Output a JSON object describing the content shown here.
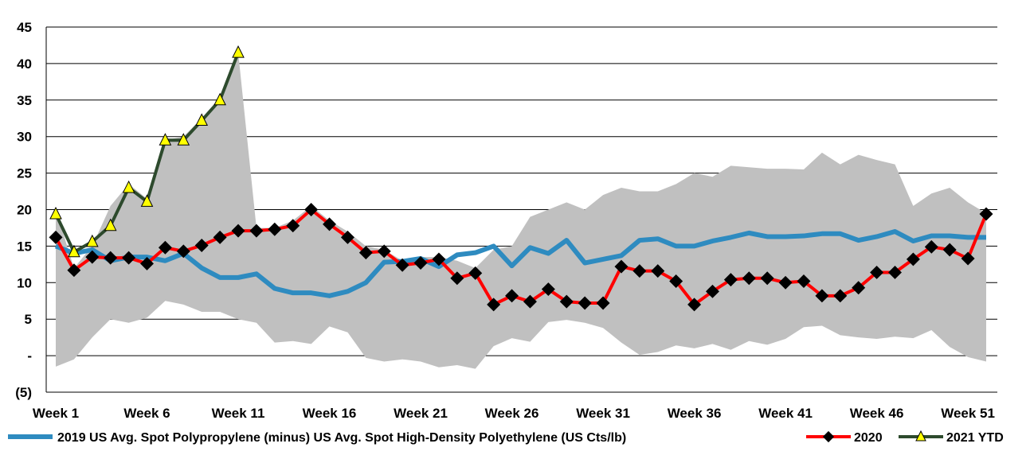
{
  "chart_data": {
    "type": "line",
    "title": "",
    "xlabel": "",
    "ylabel": "",
    "ylim": [
      -5,
      45
    ],
    "y_ticks": [
      -5,
      0,
      5,
      10,
      15,
      20,
      25,
      30,
      35,
      40,
      45
    ],
    "y_tick_labels": [
      "(5)",
      "-",
      "5",
      "10",
      "15",
      "20",
      "25",
      "30",
      "35",
      "40",
      "45"
    ],
    "x_tick_labels": [
      "Week 1",
      "Week 6",
      "Week 11",
      "Week 16",
      "Week 21",
      "Week 26",
      "Week 31",
      "Week 36",
      "Week 41",
      "Week 46",
      "Week 51"
    ],
    "x_tick_weeks": [
      1,
      6,
      11,
      16,
      21,
      26,
      31,
      36,
      41,
      46,
      51
    ],
    "grid": "horizontal",
    "legend_position": "bottom",
    "colors": {
      "band": "#c0c0c0",
      "series_2019": "#2e8bc0",
      "series_2020": "#ff0000",
      "series_2020_marker": "#000000",
      "series_2021": "#2d4a2d",
      "series_2021_marker": "#ffff00"
    },
    "weeks": [
      1,
      2,
      3,
      4,
      5,
      6,
      7,
      8,
      9,
      10,
      11,
      12,
      13,
      14,
      15,
      16,
      17,
      18,
      19,
      20,
      21,
      22,
      23,
      24,
      25,
      26,
      27,
      28,
      29,
      30,
      31,
      32,
      33,
      34,
      35,
      36,
      37,
      38,
      39,
      40,
      41,
      42,
      43,
      44,
      45,
      46,
      47,
      48,
      49,
      50,
      51,
      52
    ],
    "band_high": [
      20.0,
      12.0,
      15.0,
      20.5,
      23.5,
      21.5,
      29.5,
      30.0,
      32.5,
      35.0,
      41.5,
      17.5,
      17.5,
      18.5,
      20.5,
      18.5,
      17.0,
      15.0,
      14.5,
      13.0,
      13.5,
      13.5,
      13.0,
      12.0,
      14.5,
      15.0,
      19.0,
      20.0,
      21.0,
      20.0,
      22.0,
      23.0,
      22.5,
      22.5,
      23.5,
      25.0,
      24.5,
      26.0,
      25.8,
      25.6,
      25.6,
      25.5,
      27.8,
      26.2,
      27.5,
      26.8,
      26.2,
      20.5,
      22.2,
      23.0,
      21.0,
      19.5
    ],
    "band_low": [
      -1.5,
      -0.5,
      2.5,
      5.0,
      4.5,
      5.2,
      7.5,
      7.0,
      6.0,
      6.0,
      5.0,
      4.5,
      1.8,
      2.0,
      1.6,
      4.0,
      3.2,
      -0.3,
      -0.8,
      -0.5,
      -0.8,
      -1.6,
      -1.3,
      -1.8,
      1.3,
      2.4,
      1.9,
      4.6,
      4.9,
      4.5,
      3.8,
      1.8,
      0.1,
      0.5,
      1.4,
      1.0,
      1.6,
      0.8,
      2.0,
      1.5,
      2.3,
      3.9,
      4.1,
      2.8,
      2.5,
      2.3,
      2.6,
      2.4,
      3.5,
      1.2,
      -0.2,
      -0.8
    ],
    "series": [
      {
        "name": "2019 US Avg. Spot Polypropylene (minus) US Avg. Spot High-Density Polyethylene (US Cts/lb)",
        "values": [
          15.0,
          14.0,
          14.5,
          13.0,
          13.5,
          13.5,
          13.0,
          14.0,
          12.0,
          10.7,
          10.7,
          11.2,
          9.2,
          8.6,
          8.6,
          8.2,
          8.8,
          10.0,
          12.8,
          12.9,
          13.3,
          12.2,
          13.8,
          14.1,
          15.0,
          12.3,
          14.8,
          14.0,
          15.8,
          12.7,
          13.2,
          13.7,
          15.8,
          16.0,
          15.0,
          15.0,
          15.7,
          16.2,
          16.8,
          16.3,
          16.3,
          16.4,
          16.7,
          16.7,
          15.8,
          16.3,
          17.0,
          15.7,
          16.4,
          16.4,
          16.2,
          16.2
        ]
      },
      {
        "name": "2020",
        "values": [
          16.2,
          11.7,
          13.5,
          13.4,
          13.4,
          12.6,
          14.8,
          14.3,
          15.1,
          16.2,
          17.1,
          17.1,
          17.3,
          17.8,
          20.0,
          18.0,
          16.2,
          14.1,
          14.3,
          12.4,
          12.7,
          13.2,
          10.6,
          11.3,
          7.0,
          8.2,
          7.4,
          9.1,
          7.4,
          7.2,
          7.2,
          12.2,
          11.6,
          11.6,
          10.2,
          7.0,
          8.8,
          10.4,
          10.6,
          10.6,
          10.0,
          10.2,
          8.2,
          8.2,
          9.3,
          11.4,
          11.4,
          13.2,
          14.9,
          14.5,
          13.3,
          19.4
        ]
      },
      {
        "name": "2021 YTD",
        "values": [
          19.4,
          14.2,
          15.6,
          17.8,
          23.0,
          21.1,
          29.5,
          29.5,
          32.2,
          35.0,
          41.5
        ]
      }
    ]
  }
}
